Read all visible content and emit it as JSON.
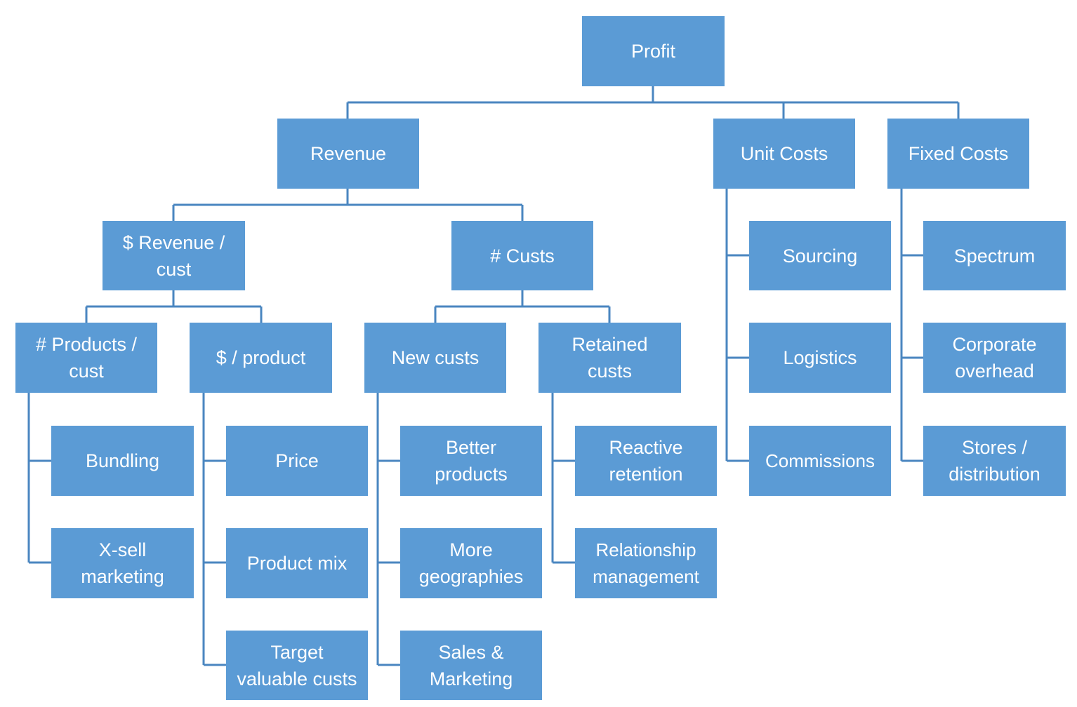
{
  "colors": {
    "box": "#5B9BD5",
    "connector": "#4A86C0",
    "text": "#FFFFFF"
  },
  "nodes": [
    {
      "id": "profit",
      "label": "Profit"
    },
    {
      "id": "revenue",
      "label": "Revenue"
    },
    {
      "id": "unit-costs",
      "label": "Unit Costs"
    },
    {
      "id": "fixed-costs",
      "label": "Fixed Costs"
    },
    {
      "id": "revenue-per-cust",
      "label": "$ Revenue / cust"
    },
    {
      "id": "num-custs",
      "label": "# Custs"
    },
    {
      "id": "sourcing",
      "label": "Sourcing"
    },
    {
      "id": "spectrum",
      "label": "Spectrum"
    },
    {
      "id": "products-per-cust",
      "label": "# Products / cust"
    },
    {
      "id": "dollar-per-product",
      "label": "$ / product"
    },
    {
      "id": "new-custs",
      "label": "New custs"
    },
    {
      "id": "retained-custs",
      "label": "Retained custs"
    },
    {
      "id": "logistics",
      "label": "Logistics"
    },
    {
      "id": "corporate-overhead",
      "label": "Corporate overhead"
    },
    {
      "id": "bundling",
      "label": "Bundling"
    },
    {
      "id": "price",
      "label": "Price"
    },
    {
      "id": "better-products",
      "label": "Better products"
    },
    {
      "id": "reactive-retention",
      "label": "Reactive retention"
    },
    {
      "id": "commissions",
      "label": "Commissions"
    },
    {
      "id": "stores-distribution",
      "label": "Stores / distribution"
    },
    {
      "id": "x-sell-marketing",
      "label": "X-sell marketing"
    },
    {
      "id": "product-mix",
      "label": "Product mix"
    },
    {
      "id": "more-geographies",
      "label": "More geographies"
    },
    {
      "id": "relationship-management",
      "label": "Relationship management"
    },
    {
      "id": "target-valuable-custs",
      "label": "Target valuable custs"
    },
    {
      "id": "sales-marketing",
      "label": "Sales & Marketing"
    }
  ]
}
